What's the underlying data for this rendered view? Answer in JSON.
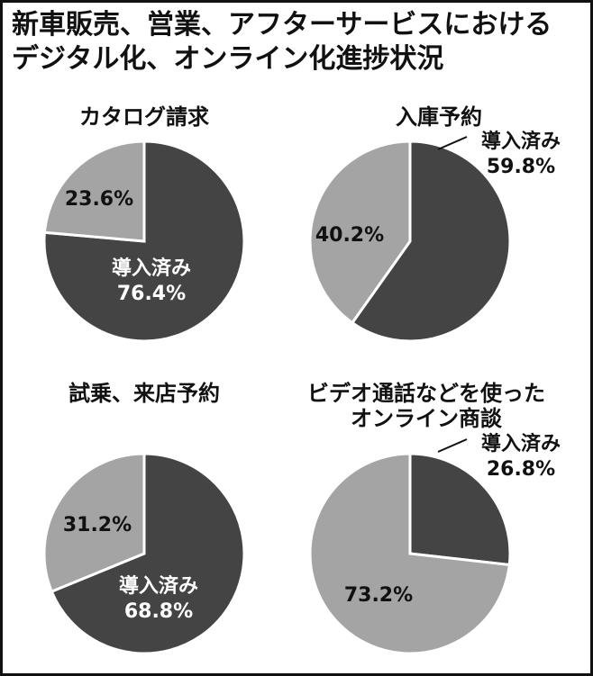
{
  "title": {
    "line1": "新車販売、営業、アフターサービスにおける",
    "line2": "デジタル化、オンライン化進捗状況"
  },
  "colors": {
    "adopted": "#444444",
    "not_adopted": "#a4a4a4",
    "outline": "#ffffff",
    "text": "#111111"
  },
  "chart_data": [
    {
      "type": "pie",
      "title": "カタログ請求",
      "slices": [
        {
          "label": "導入済み",
          "value": 76.4,
          "value_text": "76.4%",
          "color": "#444444"
        },
        {
          "label": "",
          "value": 23.6,
          "value_text": "23.6%",
          "color": "#a4a4a4"
        }
      ]
    },
    {
      "type": "pie",
      "title": "入庫予約",
      "slices": [
        {
          "label": "導入済み",
          "value": 59.8,
          "value_text": "59.8%",
          "color": "#444444"
        },
        {
          "label": "",
          "value": 40.2,
          "value_text": "40.2%",
          "color": "#a4a4a4"
        }
      ]
    },
    {
      "type": "pie",
      "title": "試乗、来店予約",
      "slices": [
        {
          "label": "導入済み",
          "value": 68.8,
          "value_text": "68.8%",
          "color": "#444444"
        },
        {
          "label": "",
          "value": 31.2,
          "value_text": "31.2%",
          "color": "#a4a4a4"
        }
      ]
    },
    {
      "type": "pie",
      "title": "ビデオ通話などを使った\nオンライン商談",
      "slices": [
        {
          "label": "導入済み",
          "value": 26.8,
          "value_text": "26.8%",
          "color": "#444444"
        },
        {
          "label": "",
          "value": 73.2,
          "value_text": "73.2%",
          "color": "#a4a4a4"
        }
      ]
    }
  ]
}
